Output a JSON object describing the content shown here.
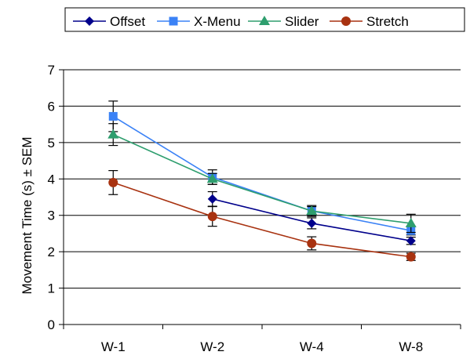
{
  "chart_data": {
    "type": "line",
    "categories": [
      "W-1",
      "W-2",
      "W-4",
      "W-8"
    ],
    "ylabel": "Movement Time (s) ± SEM",
    "xlabel": "",
    "ylim": [
      0,
      7
    ],
    "yticks": [
      0,
      1,
      2,
      3,
      4,
      5,
      6,
      7
    ],
    "grid": "horizontal",
    "legend_position": "top",
    "series": [
      {
        "name": "Offset",
        "marker": "diamond",
        "color": "#00008B",
        "values": [
          null,
          3.45,
          2.78,
          2.3
        ],
        "sem": [
          null,
          0.2,
          0.15,
          0.1
        ]
      },
      {
        "name": "X-Menu",
        "marker": "square",
        "color": "#3B82F6",
        "values": [
          5.72,
          4.05,
          3.12,
          2.58
        ],
        "sem": [
          0.42,
          0.2,
          0.15,
          0.12
        ]
      },
      {
        "name": "Slider",
        "marker": "triangle",
        "color": "#2E9E6E",
        "values": [
          5.22,
          4.0,
          3.12,
          2.78
        ],
        "sem": [
          0.3,
          0.15,
          0.12,
          0.25
        ]
      },
      {
        "name": "Stretch",
        "marker": "circle",
        "color": "#A83210",
        "values": [
          3.9,
          2.97,
          2.23,
          1.86
        ],
        "sem": [
          0.33,
          0.27,
          0.18,
          0.1
        ]
      }
    ]
  }
}
